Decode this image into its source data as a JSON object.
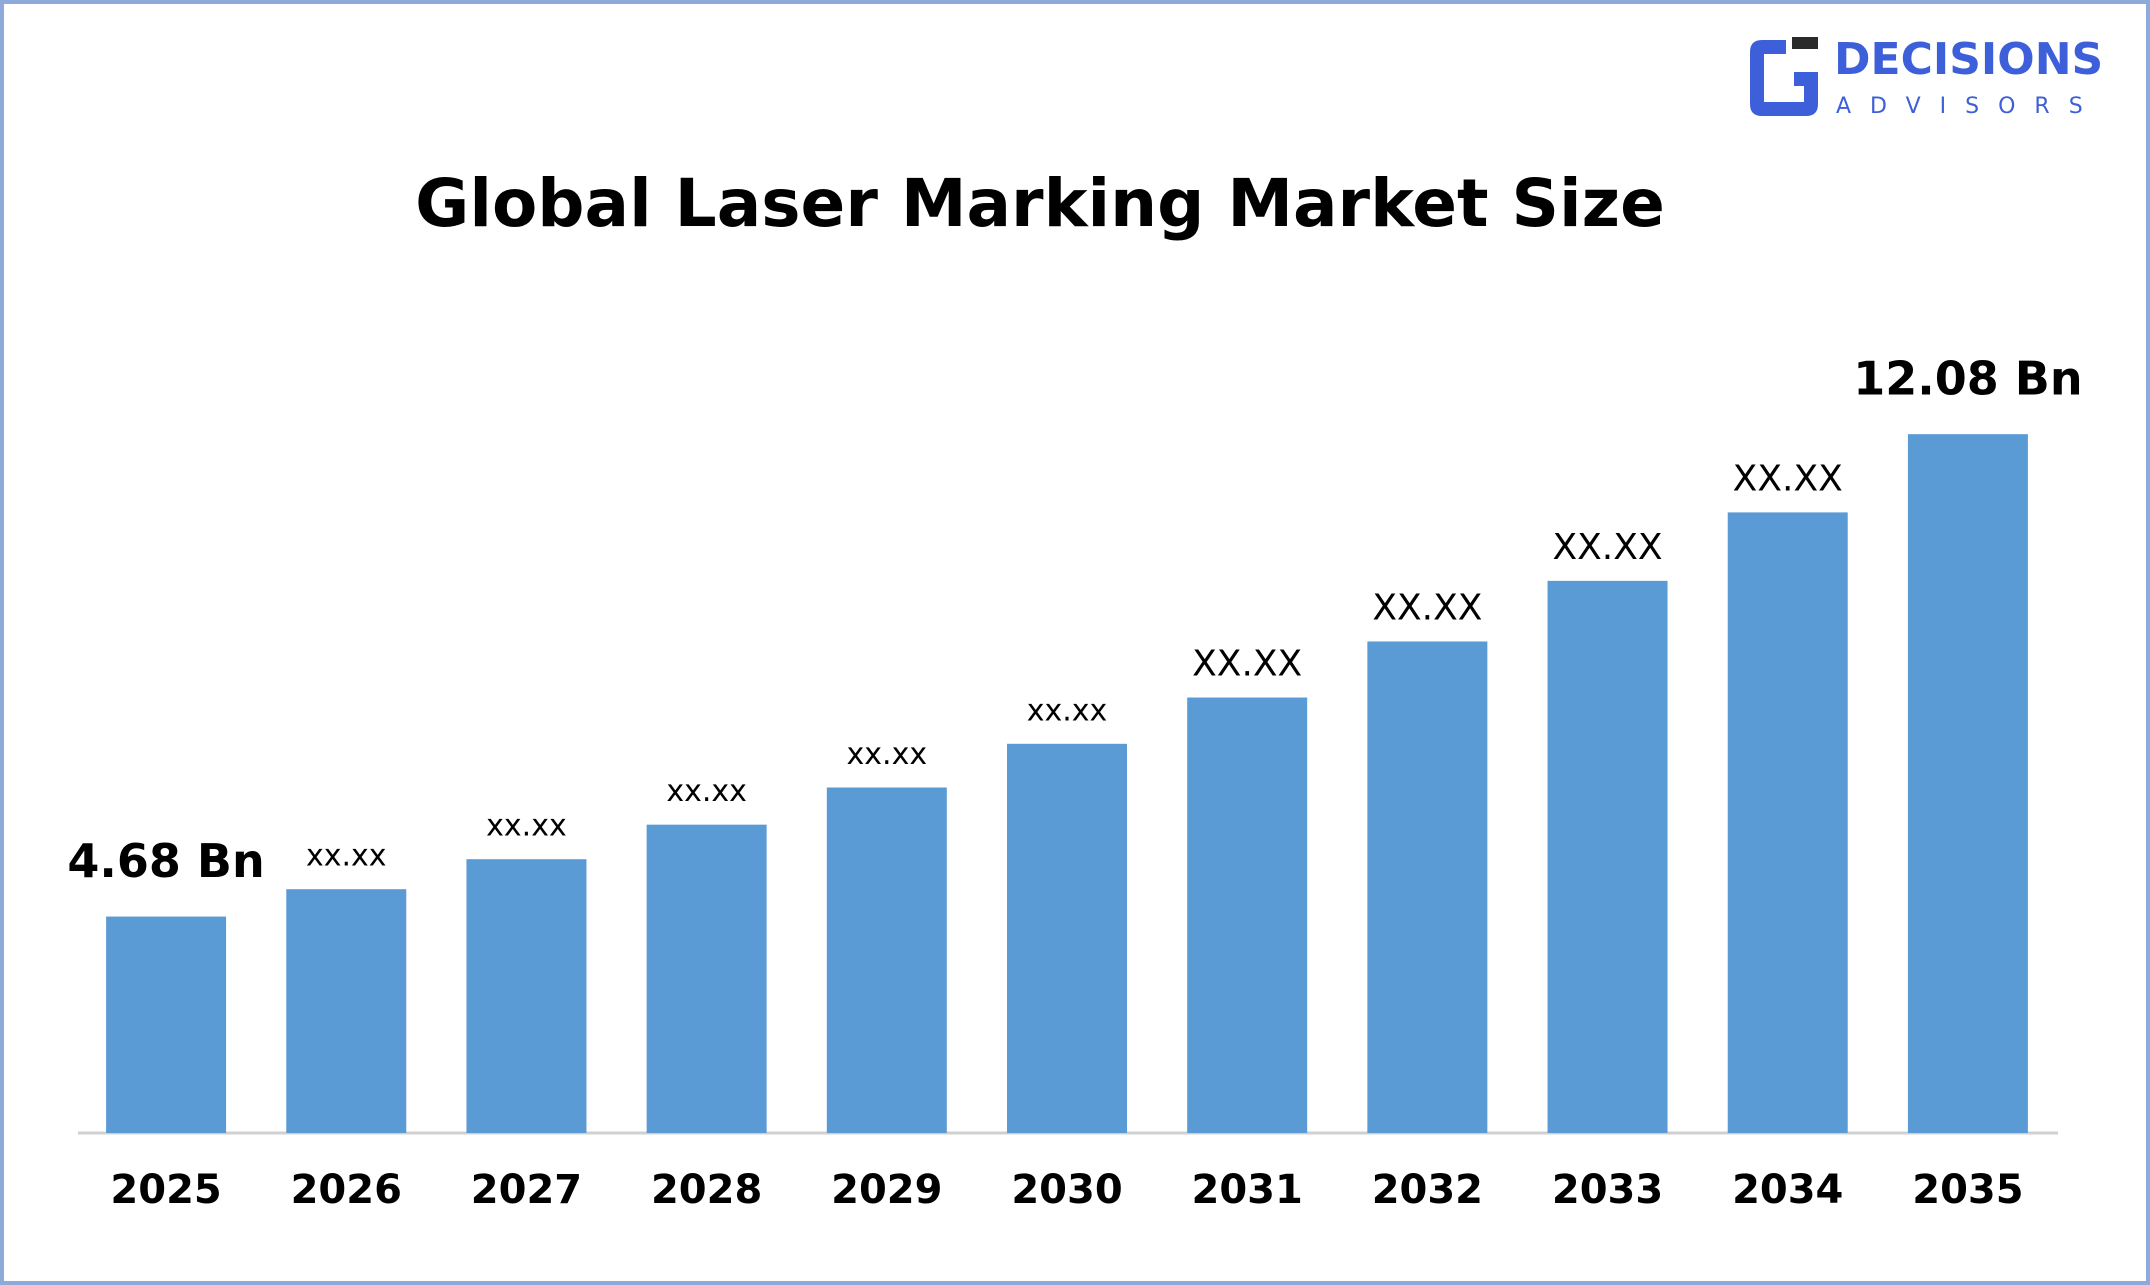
{
  "logo": {
    "name": "DECISIONS",
    "tagline": "ADVISORS"
  },
  "chart_data": {
    "type": "bar",
    "title": "Global Laser Marking Market Size",
    "categories": [
      "2025",
      "2026",
      "2027",
      "2028",
      "2029",
      "2030",
      "2031",
      "2032",
      "2033",
      "2034",
      "2035"
    ],
    "values": [
      4.68,
      5.1,
      5.56,
      6.09,
      6.66,
      7.33,
      8.04,
      8.9,
      9.83,
      10.88,
      12.08
    ],
    "value_labels": [
      "4.68 Bn",
      "xx.xx",
      "xx.xx",
      "xx.xx",
      "xx.xx",
      "xx.xx",
      "XX.XX",
      "XX.XX",
      "XX.XX",
      "XX.XX",
      "12.08 Bn"
    ],
    "color": "#5b9bd5",
    "ylim": [
      1.36,
      14
    ]
  }
}
